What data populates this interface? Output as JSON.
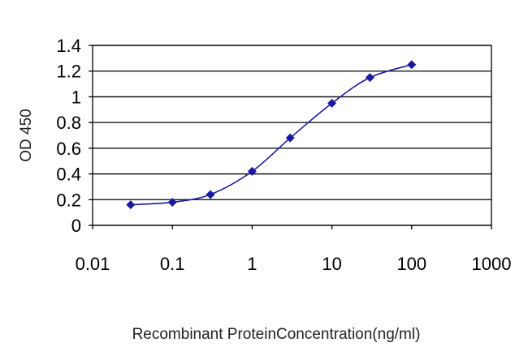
{
  "chart_data": {
    "type": "line",
    "xlabel": "Recombinant ProteinConcentration(ng/ml)",
    "ylabel": "OD 450",
    "x_scale": "log",
    "xlim": [
      0.01,
      1000
    ],
    "ylim": [
      0,
      1.4
    ],
    "x_ticks": [
      "0.01",
      "0.1",
      "1",
      "10",
      "100",
      "1000"
    ],
    "y_ticks": [
      "0",
      "0.2",
      "0.4",
      "0.6",
      "0.8",
      "1",
      "1.2",
      "1.4"
    ],
    "grid": "horizontal",
    "legend": "none",
    "series": [
      {
        "color": "#1a1aa0",
        "marker": "diamond",
        "x": [
          0.03,
          0.1,
          0.3,
          1,
          3,
          10,
          30,
          100
        ],
        "y": [
          0.16,
          0.18,
          0.24,
          0.42,
          0.68,
          0.95,
          1.15,
          1.25
        ]
      }
    ]
  }
}
